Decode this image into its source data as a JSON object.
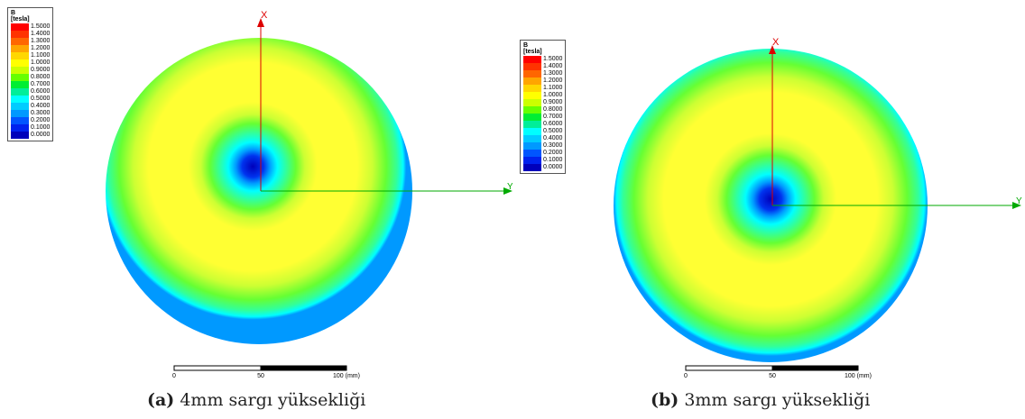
{
  "legend": {
    "symbol": "B",
    "unit": "[tesla]",
    "levels": [
      "1.5000",
      "1.4000",
      "1.3000",
      "1.2000",
      "1.1000",
      "1.0000",
      "0.9000",
      "0.8000",
      "0.7000",
      "0.6000",
      "0.5000",
      "0.4000",
      "0.3000",
      "0.2000",
      "0.1000",
      "0.0000"
    ],
    "colors": [
      "#ff0000",
      "#ff3300",
      "#ff6600",
      "#ffa500",
      "#ffd700",
      "#ffff00",
      "#ccff00",
      "#66ff00",
      "#00ee33",
      "#00ee99",
      "#00ffff",
      "#00ccff",
      "#0099ff",
      "#0055ff",
      "#0022ee",
      "#0000bb"
    ]
  },
  "panels": [
    {
      "label": "(a)",
      "caption": "4mm sargı yüksekliği",
      "axis_x": "X",
      "axis_y": "Y",
      "scale_ticks": [
        "0",
        "50",
        "100 (mm)"
      ]
    },
    {
      "label": "(b)",
      "caption": "3mm sargı yüksekliği",
      "axis_x": "X",
      "axis_y": "Y",
      "scale_ticks": [
        "0",
        "50",
        "100 (mm)"
      ]
    }
  ]
}
